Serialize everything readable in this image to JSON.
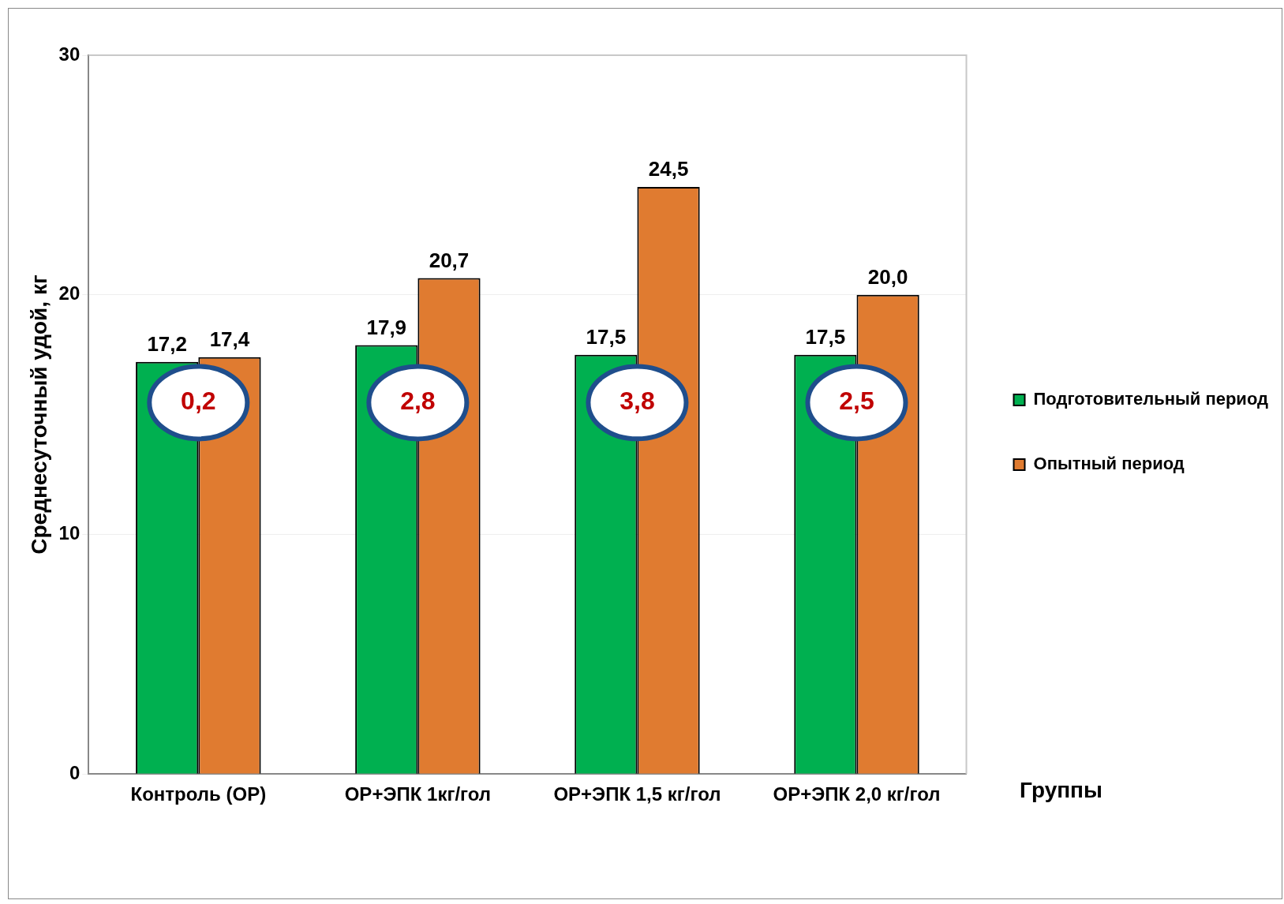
{
  "chart_data": {
    "type": "bar",
    "ylabel": "Среднесуточный удой, кг",
    "xlabel": "Группы",
    "categories": [
      "Контроль (ОР)",
      "ОР+ЭПК 1кг/гол",
      "ОР+ЭПК 1,5 кг/гол",
      "ОР+ЭПК 2,0 кг/гол"
    ],
    "series": [
      {
        "name": "Подготовительный период",
        "color": "#00b050",
        "values": [
          17.2,
          17.9,
          17.5,
          17.5
        ],
        "value_labels": [
          "17,2",
          "17,9",
          "17,5",
          "17,5"
        ]
      },
      {
        "name": "Опытный период",
        "color": "#e07b30",
        "values": [
          17.4,
          20.7,
          24.5,
          20.0
        ],
        "value_labels": [
          "17,4",
          "20,7",
          "24,5",
          "20,0"
        ]
      }
    ],
    "ylim": [
      0,
      30
    ],
    "yticks": [
      0,
      10,
      20,
      30
    ],
    "grid": "y",
    "legend": "right",
    "annotations": [
      {
        "text": "0,2",
        "x": "Контроль (ОР)",
        "y": 15.5
      },
      {
        "text": "2,8",
        "x": "ОР+ЭПК 1кг/гол",
        "y": 15.5
      },
      {
        "text": "3,8",
        "x": "ОР+ЭПК 1,5 кг/гол",
        "y": 15.5
      },
      {
        "text": "2,5",
        "x": "ОР+ЭПК 2,0 кг/гол",
        "y": 15.5
      }
    ]
  }
}
